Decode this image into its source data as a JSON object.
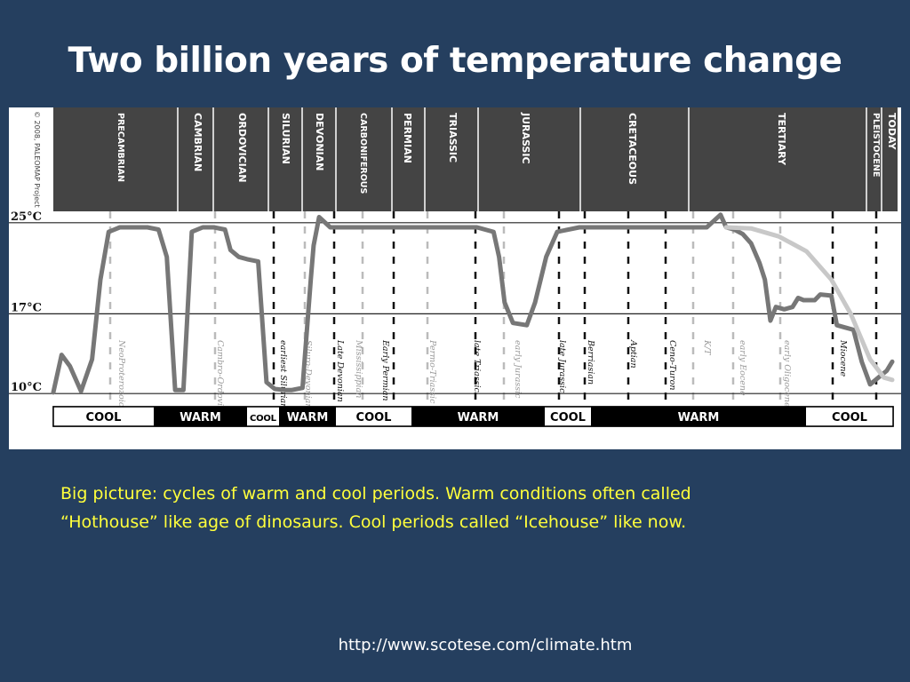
{
  "slide": {
    "title": "Two billion years of temperature change",
    "caption_line1": "Big picture:  cycles of warm and cool periods. Warm conditions often called",
    "caption_line2": "“Hothouse” like age of dinosaurs.  Cool periods called “Icehouse” like now.",
    "source_url": "http://www.scotese.com/climate.htm"
  },
  "chart_data": {
    "type": "line",
    "title": "",
    "copyright": "© 2008, PALEOMAP Project",
    "y_axis": {
      "label": "",
      "ticks": [
        "25°C",
        "17°C",
        "10°C"
      ],
      "tick_values": [
        25,
        17,
        10
      ],
      "range": [
        9,
        26
      ]
    },
    "periods": [
      "PRECAMBRIAN",
      "CAMBRIAN",
      "ORDOVICIAN",
      "SILURIAN",
      "DEVONIAN",
      "CARBONIFEROUS",
      "PERMIAN",
      "TRIASSIC",
      "JURASSIC",
      "CRETACEOUS",
      "TERTIARY",
      "PLEISTOCENE",
      "TODAY"
    ],
    "events": [
      "NeoProterozoic",
      "Cambro-Ordovician",
      "earliest Silurian",
      "Siluro-Devonian",
      "Late Devonian",
      "Mississippian",
      "Early Permian",
      "Permo-Triassic",
      "late Triassic",
      "early Jurassic",
      "late Jurassic",
      "Berriasian",
      "Aptian",
      "Ceno-Turon",
      "K/T",
      "early Eocene",
      "early Oligocene",
      "Miocene"
    ],
    "climate_bands": [
      {
        "label": "COOL",
        "state": "cool"
      },
      {
        "label": "WARM",
        "state": "warm"
      },
      {
        "label": "COOL",
        "state": "cool"
      },
      {
        "label": "WARM",
        "state": "warm"
      },
      {
        "label": "COOL",
        "state": "cool"
      },
      {
        "label": "WARM",
        "state": "warm"
      },
      {
        "label": "COOL",
        "state": "cool"
      },
      {
        "label": "WARM",
        "state": "warm"
      },
      {
        "label": "COOL",
        "state": "cool"
      }
    ],
    "series": [
      {
        "style": "dark",
        "points": [
          [
            0,
            10.1
          ],
          [
            3,
            13.4
          ],
          [
            6,
            12.4
          ],
          [
            10,
            10.2
          ],
          [
            14,
            13
          ],
          [
            17,
            20
          ],
          [
            20,
            24.2
          ],
          [
            24,
            24.6
          ],
          [
            28,
            24.6
          ],
          [
            34,
            24.6
          ],
          [
            38,
            24.4
          ],
          [
            41,
            22
          ],
          [
            44,
            10.3
          ],
          [
            47,
            10.3
          ],
          [
            50,
            24.2
          ],
          [
            54,
            24.6
          ],
          [
            58,
            24.6
          ],
          [
            62,
            24.4
          ],
          [
            64,
            22.6
          ],
          [
            67,
            22
          ],
          [
            70,
            21.8
          ],
          [
            74,
            21.6
          ],
          [
            75,
            18
          ],
          [
            77,
            11
          ],
          [
            80,
            10.4
          ],
          [
            84,
            10.3
          ],
          [
            86,
            10.3
          ],
          [
            90,
            10.5
          ],
          [
            93,
            20
          ],
          [
            94,
            23
          ],
          [
            96,
            25.5
          ],
          [
            100,
            24.6
          ],
          [
            106,
            24.6
          ],
          [
            113,
            24.6
          ],
          [
            126,
            24.6
          ],
          [
            136,
            24.6
          ],
          [
            146,
            24.6
          ],
          [
            153,
            24.6
          ],
          [
            159,
            24.2
          ],
          [
            161,
            22
          ],
          [
            163,
            18
          ],
          [
            166,
            16.2
          ],
          [
            171,
            16
          ],
          [
            174,
            18
          ],
          [
            178,
            22
          ],
          [
            182,
            24.2
          ],
          [
            190,
            24.6
          ],
          [
            200,
            24.6
          ],
          [
            210,
            24.6
          ],
          [
            220,
            24.6
          ],
          [
            230,
            24.6
          ],
          [
            236,
            24.6
          ],
          [
            241,
            25.7
          ],
          [
            243,
            24.6
          ],
          [
            246,
            24.4
          ],
          [
            249,
            24
          ],
          [
            252,
            23.2
          ],
          [
            255,
            21.5
          ],
          [
            257,
            20
          ],
          [
            259,
            16.4
          ],
          [
            261,
            17.6
          ],
          [
            264,
            17.4
          ],
          [
            267,
            17.6
          ],
          [
            269,
            18.4
          ],
          [
            271,
            18.2
          ],
          [
            275,
            18.2
          ],
          [
            277,
            18.7
          ],
          [
            281,
            18.6
          ],
          [
            283,
            16
          ],
          [
            286,
            15.8
          ],
          [
            289,
            15.6
          ],
          [
            292,
            12.8
          ],
          [
            295,
            10.8
          ],
          [
            298,
            11.4
          ],
          [
            301,
            12
          ],
          [
            303,
            12.8
          ]
        ]
      },
      {
        "style": "light",
        "points": [
          [
            243,
            24.6
          ],
          [
            252,
            24.5
          ],
          [
            262,
            23.8
          ],
          [
            272,
            22.5
          ],
          [
            281,
            20
          ],
          [
            288,
            17
          ],
          [
            295,
            13
          ],
          [
            300,
            11.4
          ],
          [
            303,
            11.2
          ]
        ]
      }
    ]
  }
}
